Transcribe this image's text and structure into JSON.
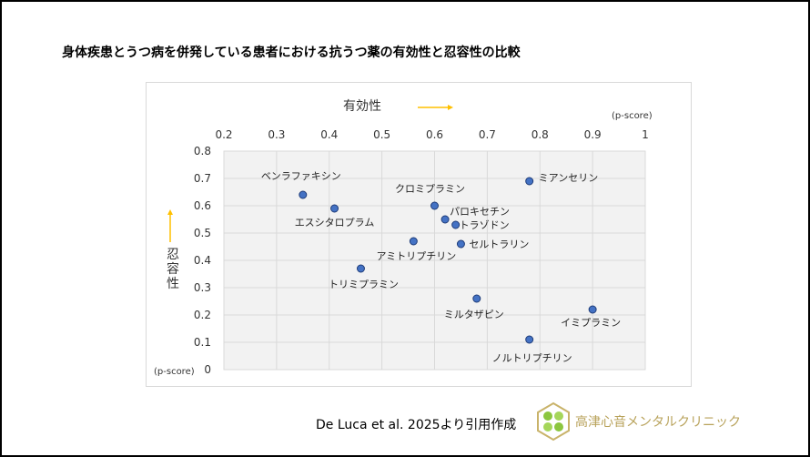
{
  "title": "身体疾患とうつ病を併発している患者における抗うつ薬の有効性と忍容性の比較",
  "citation": "De Luca et al. 2025より引用作成",
  "clinic_name": "高津心音メンタルクリニック",
  "colors": {
    "marker": "#4472c4",
    "marker_edge": "#1f3c78",
    "arrow": "#ffc000",
    "plot_bg": "#f2f2f2",
    "grid": "#d9d9d9",
    "clinic_text": "#b8a25a",
    "logo_green": "#8cc63f"
  },
  "chart_data": {
    "type": "scatter",
    "title": "",
    "xlabel": "有効性",
    "ylabel": "忍容性",
    "x_unit": "(p-score)",
    "y_unit": "(p-score)",
    "xlim": [
      0.2,
      1
    ],
    "ylim": [
      0,
      0.8
    ],
    "x_ticks": [
      "0.2",
      "0.3",
      "0.4",
      "0.5",
      "0.6",
      "0.7",
      "0.8",
      "0.9",
      "1"
    ],
    "y_ticks": [
      "0",
      "0.1",
      "0.2",
      "0.3",
      "0.4",
      "0.5",
      "0.6",
      "0.7",
      "0.8"
    ],
    "x_axis_position": "top",
    "grid": true,
    "points": [
      {
        "label": "ベンラファキシン",
        "x": 0.35,
        "y": 0.64
      },
      {
        "label": "エスシタロプラム",
        "x": 0.41,
        "y": 0.59
      },
      {
        "label": "クロミプラミン",
        "x": 0.6,
        "y": 0.6
      },
      {
        "label": "パロキセチン",
        "x": 0.62,
        "y": 0.55
      },
      {
        "label": "トラゾドン",
        "x": 0.64,
        "y": 0.53
      },
      {
        "label": "セルトラリン",
        "x": 0.65,
        "y": 0.46
      },
      {
        "label": "アミトリプチリン",
        "x": 0.56,
        "y": 0.47
      },
      {
        "label": "トリミプラミン",
        "x": 0.46,
        "y": 0.37
      },
      {
        "label": "ミルタザピン",
        "x": 0.68,
        "y": 0.26
      },
      {
        "label": "ミアンセリン",
        "x": 0.78,
        "y": 0.69
      },
      {
        "label": "イミプラミン",
        "x": 0.9,
        "y": 0.22
      },
      {
        "label": "ノルトリプチリン",
        "x": 0.78,
        "y": 0.11
      }
    ]
  }
}
